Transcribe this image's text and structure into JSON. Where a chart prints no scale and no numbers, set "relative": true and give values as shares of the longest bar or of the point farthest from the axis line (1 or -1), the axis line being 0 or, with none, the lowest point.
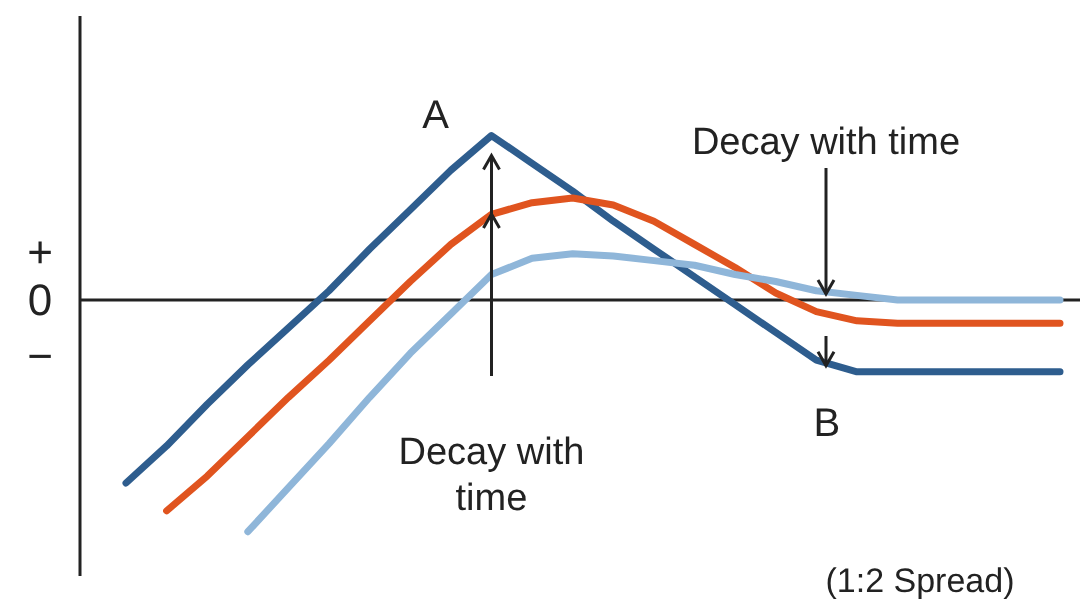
{
  "chart_data": {
    "type": "line",
    "relative": true,
    "line_style": "solid",
    "categories": [
      null,
      null,
      null,
      null,
      null,
      null,
      null,
      null,
      null,
      null,
      null,
      null,
      null,
      null,
      null,
      null,
      null,
      null,
      null,
      null,
      null,
      null,
      null,
      null
    ],
    "series": [
      {
        "color": "#2e5d8e",
        "values": [
          -0.79,
          -0.63,
          -0.45,
          -0.28,
          -0.12,
          0.04,
          0.22,
          0.39,
          0.56,
          0.71,
          0.59,
          0.47,
          0.34,
          0.22,
          0.1,
          -0.02,
          -0.14,
          -0.26,
          -0.31,
          -0.31,
          -0.31,
          -0.31,
          -0.31,
          -0.31
        ]
      },
      {
        "color": "#e0541f",
        "values": [
          null,
          -0.91,
          -0.76,
          -0.59,
          -0.42,
          -0.26,
          -0.09,
          0.08,
          0.24,
          0.37,
          0.42,
          0.44,
          0.41,
          0.34,
          0.24,
          0.14,
          0.03,
          -0.05,
          -0.09,
          -0.1,
          -0.1,
          -0.1,
          -0.1,
          -0.1
        ]
      },
      {
        "color": "#8fb6d9",
        "values": [
          null,
          null,
          null,
          -1,
          -0.81,
          -0.62,
          -0.42,
          -0.23,
          -0.06,
          0.11,
          0.18,
          0.2,
          0.19,
          0.17,
          0.15,
          0.11,
          0.08,
          0.04,
          0.02,
          0,
          0,
          0,
          0,
          0
        ]
      }
    ],
    "annotations": [
      "+",
      "0",
      "−",
      "A",
      "B",
      "Decay with time",
      "Decay with time",
      "(1:2 Spread)"
    ]
  }
}
